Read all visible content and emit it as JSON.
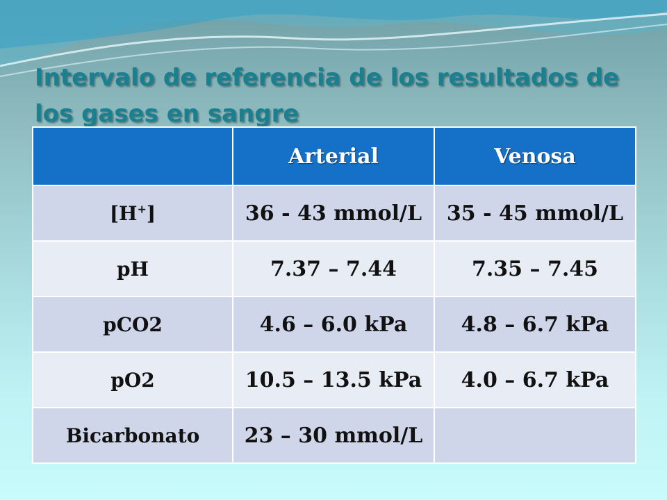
{
  "slide": {
    "title": "Intervalo de referencia de los resultados de los gases en sangre"
  },
  "table": {
    "headers": [
      "",
      "Arterial",
      "Venosa"
    ],
    "rows": [
      {
        "label": "[H+]",
        "arterial": "36 - 43 mmol/L",
        "venosa": "35 - 45 mmol/L"
      },
      {
        "label": "pH",
        "arterial": "7.37 – 7.44",
        "venosa": "7.35 – 7.45"
      },
      {
        "label": "pCO2",
        "arterial": "4.6 – 6.0 kPa",
        "venosa": "4.8 – 6.7 kPa"
      },
      {
        "label": "pO2",
        "arterial": "10.5 – 13.5 kPa",
        "venosa": "4.0 – 6.7 kPa"
      },
      {
        "label": "Bicarbonato",
        "arterial": "23 – 30 mmol/L",
        "venosa": ""
      }
    ]
  }
}
